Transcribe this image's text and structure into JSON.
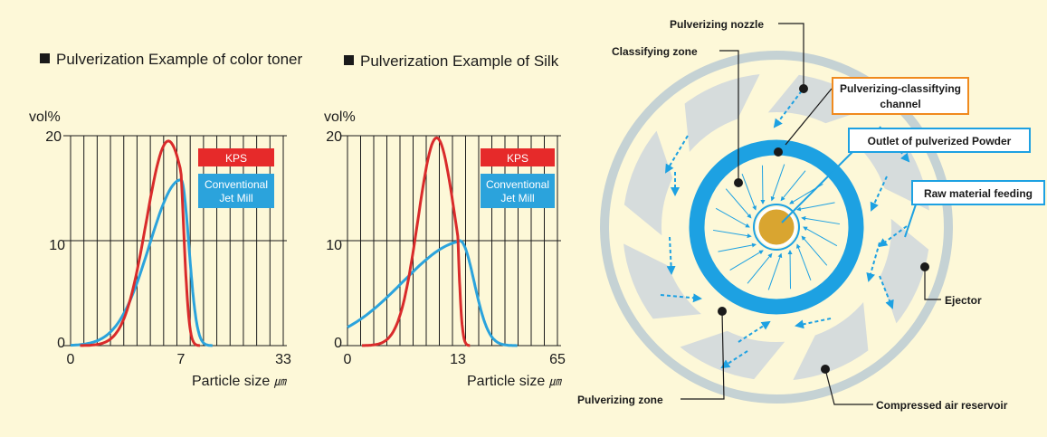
{
  "charts": [
    {
      "section_title": "Pulverization Example of color toner",
      "unit_label": "vol%",
      "x_axis_label": "Particle size",
      "x_unit": "㎛",
      "x_ticks": [
        "0",
        "7",
        "33"
      ],
      "y_ticks": [
        "20",
        "10",
        "0"
      ],
      "legend_kps": "KPS",
      "legend_conv_line1": "Conventional",
      "legend_conv_line2": "Jet Mill"
    },
    {
      "section_title": "Pulverization Example of Silk",
      "unit_label": "vol%",
      "x_axis_label": "Particle size",
      "x_unit": "㎛",
      "x_ticks": [
        "0",
        "13",
        "65"
      ],
      "y_ticks": [
        "20",
        "10",
        "0"
      ],
      "legend_kps": "KPS",
      "legend_conv_line1": "Conventional",
      "legend_conv_line2": "Jet Mill"
    }
  ],
  "chart_data": [
    {
      "type": "line",
      "x_ticks": [
        0,
        7,
        33
      ],
      "ylim": [
        0,
        20
      ],
      "series": [
        {
          "name": "KPS",
          "color": "#d92b2b",
          "peak_x": 6.2,
          "peak_y": 19.5,
          "spread": 1.4
        },
        {
          "name": "Conventional Jet Mill",
          "color": "#2ba3dc",
          "peak_x": 7,
          "peak_y": 15.8,
          "spread": 2.0
        }
      ]
    },
    {
      "type": "line",
      "x_ticks": [
        0,
        13,
        65
      ],
      "ylim": [
        0,
        20
      ],
      "series": [
        {
          "name": "KPS",
          "color": "#d92b2b",
          "peak_x": 10.5,
          "peak_y": 19.8,
          "spread": 2.2
        },
        {
          "name": "Conventional Jet Mill",
          "color": "#2ba3dc",
          "peak_x": 14,
          "peak_y": 10,
          "spread": 7.5
        }
      ]
    }
  ],
  "diagram": {
    "labels": {
      "pulverizing_nozzle": "Pulverizing nozzle",
      "classifying_zone": "Classifying zone",
      "channel_line1": "Pulverizing-classiftying",
      "channel_line2": "channel",
      "outlet": "Outlet of pulverized Powder",
      "raw_material": "Raw material feeding",
      "ejector": "Ejector",
      "pulverizing_zone": "Pulverizing zone",
      "compressed_air": "Compressed air reservoir"
    },
    "colors": {
      "ring": "#1da1e2",
      "core": "#d9a530",
      "channel_box": "#f08a1e",
      "box_blue": "#1da1e2",
      "outer_ring": "#c9d3d3"
    }
  }
}
